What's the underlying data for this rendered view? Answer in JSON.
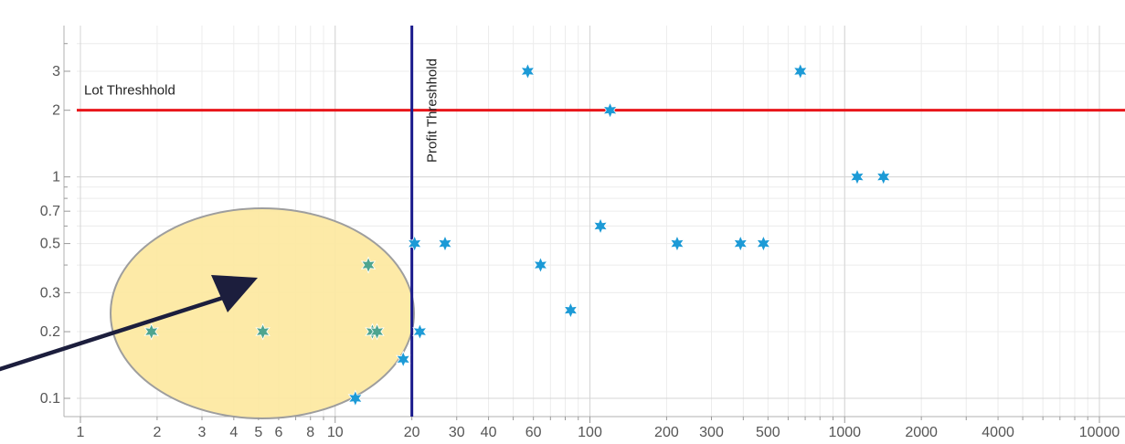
{
  "chart_data": {
    "type": "scatter",
    "title": "",
    "xlabel": "",
    "ylabel": "",
    "x_scale": "log",
    "y_scale": "log",
    "xlim": [
      1,
      10000
    ],
    "ylim": [
      0.09,
      5
    ],
    "grid": true,
    "legend": "none",
    "x_ticks": [
      "1",
      "2",
      "3",
      "4",
      "5",
      "6",
      "8",
      "10",
      "20",
      "30",
      "40",
      "60",
      "100",
      "200",
      "300",
      "500",
      "1000",
      "2000",
      "4000",
      "10000"
    ],
    "y_ticks": [
      "0.1",
      "0.2",
      "0.3",
      "0.5",
      "0.7",
      "1",
      "2",
      "3"
    ],
    "x_tick_values": [
      1,
      2,
      3,
      4,
      5,
      6,
      8,
      10,
      20,
      30,
      40,
      60,
      100,
      200,
      300,
      500,
      1000,
      2000,
      4000,
      10000
    ],
    "y_tick_values": [
      0.1,
      0.2,
      0.3,
      0.5,
      0.7,
      1,
      2,
      3
    ],
    "thresholds": [
      {
        "label": "Lot Threshhold",
        "axis": "y",
        "value": 2,
        "color": "#e8161b"
      },
      {
        "label": "Profit Threshhold",
        "axis": "x",
        "value": 20,
        "color": "#1a1a8c"
      }
    ],
    "highlight": {
      "shape": "ellipse",
      "fill": "#fde9a3",
      "stroke": "#999999",
      "arrow_color": "#1c1e3d"
    },
    "marker_color": "#1c9ad6",
    "series": [
      {
        "values": [
          [
            1.9,
            0.2
          ],
          [
            5.2,
            0.2
          ],
          [
            13.5,
            0.4
          ],
          [
            14,
            0.2
          ],
          [
            14.6,
            0.2
          ],
          [
            12,
            0.1
          ],
          [
            18.5,
            0.15
          ],
          [
            20.5,
            0.5
          ],
          [
            21.5,
            0.2
          ],
          [
            27,
            0.5
          ],
          [
            57,
            3
          ],
          [
            64,
            0.4
          ],
          [
            84,
            0.25
          ],
          [
            110,
            0.6
          ],
          [
            120,
            2
          ],
          [
            220,
            0.5
          ],
          [
            390,
            0.5
          ],
          [
            480,
            0.5
          ],
          [
            670,
            3
          ],
          [
            1120,
            1
          ],
          [
            1420,
            1
          ]
        ]
      }
    ]
  }
}
